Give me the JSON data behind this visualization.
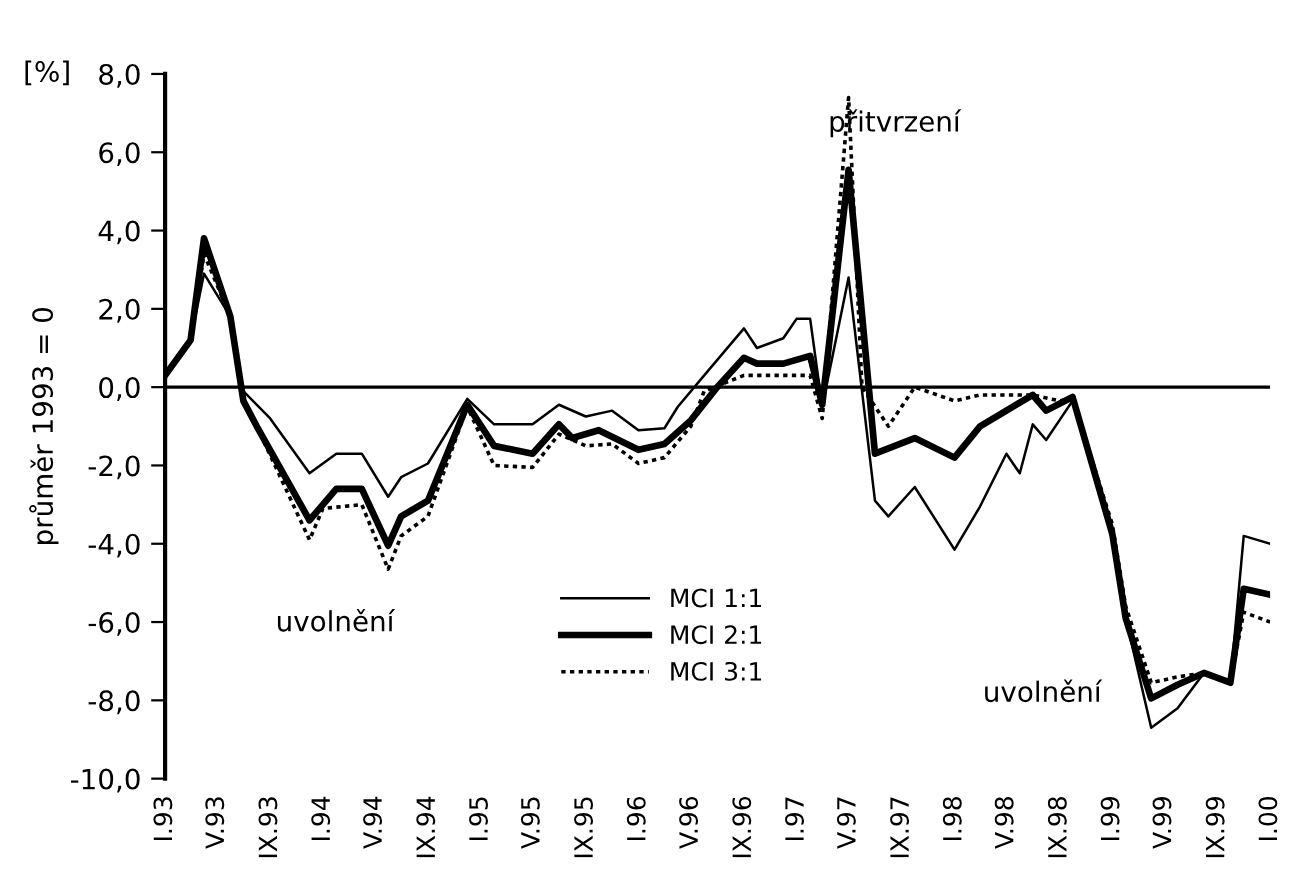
{
  "chart_data": {
    "type": "line",
    "ylabel": "průměr 1993 = 0",
    "annotations": [
      "[%]",
      "přitvrzení",
      "uvolnění",
      "uvolnění"
    ],
    "xlim": [
      "1993-01",
      "2000-01"
    ],
    "xticks": [
      {
        "value": "1993-01",
        "label": "I.93"
      },
      {
        "value": "1993-05",
        "label": "V.93"
      },
      {
        "value": "1993-09",
        "label": "IX.93"
      },
      {
        "value": "1994-01",
        "label": "I.94"
      },
      {
        "value": "1994-05",
        "label": "V.94"
      },
      {
        "value": "1994-09",
        "label": "IX.94"
      },
      {
        "value": "1995-01",
        "label": "I.95"
      },
      {
        "value": "1995-05",
        "label": "V.95"
      },
      {
        "value": "1995-09",
        "label": "IX.95"
      },
      {
        "value": "1996-01",
        "label": "I.96"
      },
      {
        "value": "1996-05",
        "label": "V.96"
      },
      {
        "value": "1996-09",
        "label": "IX.96"
      },
      {
        "value": "1997-01",
        "label": "I.97"
      },
      {
        "value": "1997-05",
        "label": "V.97"
      },
      {
        "value": "1997-09",
        "label": "IX.97"
      },
      {
        "value": "1998-01",
        "label": "I.98"
      },
      {
        "value": "1998-05",
        "label": "V.98"
      },
      {
        "value": "1998-09",
        "label": "IX.98"
      },
      {
        "value": "1999-01",
        "label": "I.99"
      },
      {
        "value": "1999-05",
        "label": "V.99"
      },
      {
        "value": "1999-09",
        "label": "IX.99"
      },
      {
        "value": "2000-01",
        "label": "I.00"
      }
    ],
    "ylim": [
      -10,
      8
    ],
    "yticks": [
      {
        "value": -10,
        "label": "-10,0"
      },
      {
        "value": -8,
        "label": "-8,0"
      },
      {
        "value": -6,
        "label": "-6,0"
      },
      {
        "value": -4,
        "label": "-4,0"
      },
      {
        "value": -2,
        "label": "-2,0"
      },
      {
        "value": 0,
        "label": "0,0"
      },
      {
        "value": 2,
        "label": "2,0"
      },
      {
        "value": 4,
        "label": "4,0"
      },
      {
        "value": 6,
        "label": "6,0"
      },
      {
        "value": 8,
        "label": "8,0"
      }
    ],
    "ref_lines": [
      {
        "axis": "y",
        "value": 0,
        "color": "#000000",
        "line_style": "solid"
      }
    ],
    "grid": false,
    "legend": "bottom",
    "series": [
      {
        "name": "MCI 1:1",
        "color": "#000000",
        "line_style": "solid",
        "x": [
          "1993-01",
          "1993-03",
          "1993-04",
          "1993-06",
          "1993-07",
          "1993-09",
          "1993-12",
          "1994-02",
          "1994-04",
          "1994-06",
          "1994-07",
          "1994-09",
          "1994-12",
          "1995-02",
          "1995-05",
          "1995-07",
          "1995-09",
          "1995-11",
          "1996-01",
          "1996-03",
          "1996-04",
          "1996-06",
          "1996-09",
          "1996-10",
          "1996-12",
          "1997-01",
          "1997-02",
          "1997-03",
          "1997-05",
          "1997-07",
          "1997-08",
          "1997-10",
          "1998-01",
          "1998-03",
          "1998-05",
          "1998-06",
          "1998-07",
          "1998-08",
          "1998-10",
          "1999-01",
          "1999-02",
          "1999-04",
          "1999-06",
          "1999-08",
          "1999-10",
          "1999-11",
          "2000-01"
        ],
        "values": [
          0.3,
          1.2,
          2.9,
          1.8,
          -0.1,
          -0.8,
          -2.2,
          -1.7,
          -1.7,
          -2.8,
          -2.3,
          -1.95,
          -0.3,
          -0.95,
          -0.95,
          -0.45,
          -0.75,
          -0.6,
          -1.1,
          -1.05,
          -0.5,
          0.3,
          1.5,
          1.0,
          1.25,
          1.75,
          1.75,
          -0.5,
          2.8,
          -2.9,
          -3.3,
          -2.55,
          -4.15,
          -3.05,
          -1.7,
          -2.2,
          -0.95,
          -1.35,
          -0.35,
          -3.75,
          -5.9,
          -8.7,
          -8.2,
          -7.3,
          -7.55,
          -3.8,
          -4.0
        ]
      },
      {
        "name": "MCI 2:1",
        "color": "#000000",
        "line_style": "solid",
        "x": [
          "1993-01",
          "1993-03",
          "1993-04",
          "1993-06",
          "1993-07",
          "1993-08",
          "1993-12",
          "1994-02",
          "1994-04",
          "1994-06",
          "1994-07",
          "1994-09",
          "1994-12",
          "1995-02",
          "1995-05",
          "1995-07",
          "1995-08",
          "1995-10",
          "1996-01",
          "1996-03",
          "1996-05",
          "1996-07",
          "1996-09",
          "1996-10",
          "1996-12",
          "1997-02",
          "1997-03",
          "1997-05",
          "1997-07",
          "1997-10",
          "1998-01",
          "1998-03",
          "1998-05",
          "1998-07",
          "1998-08",
          "1998-10",
          "1999-01",
          "1999-02",
          "1999-04",
          "1999-06",
          "1999-08",
          "1999-10",
          "1999-11",
          "2000-01"
        ],
        "values": [
          0.3,
          1.2,
          3.8,
          1.8,
          -0.35,
          -1.0,
          -3.4,
          -2.6,
          -2.6,
          -4.05,
          -3.3,
          -2.9,
          -0.45,
          -1.5,
          -1.7,
          -0.95,
          -1.3,
          -1.1,
          -1.6,
          -1.45,
          -0.85,
          0.0,
          0.75,
          0.6,
          0.6,
          0.8,
          -0.45,
          5.55,
          -1.7,
          -1.3,
          -1.8,
          -1.0,
          -0.6,
          -0.2,
          -0.6,
          -0.25,
          -3.75,
          -5.9,
          -7.95,
          -7.6,
          -7.3,
          -7.55,
          -5.15,
          -5.3
        ]
      },
      {
        "name": "MCI 3:1",
        "color": "#000000",
        "line_style": "dotted",
        "x": [
          "1993-01",
          "1993-03",
          "1993-04",
          "1993-06",
          "1993-07",
          "1993-08",
          "1993-12",
          "1994-01",
          "1994-04",
          "1994-06",
          "1994-07",
          "1994-09",
          "1994-12",
          "1995-02",
          "1995-05",
          "1995-07",
          "1995-09",
          "1995-11",
          "1996-01",
          "1996-03",
          "1996-05",
          "1996-06",
          "1996-09",
          "1996-12",
          "1997-02",
          "1997-03",
          "1997-05",
          "1997-06",
          "1997-08",
          "1997-10",
          "1998-01",
          "1998-03",
          "1998-06",
          "1998-07",
          "1998-09",
          "1998-10",
          "1999-01",
          "1999-02",
          "1999-04",
          "1999-06",
          "1999-08",
          "1999-10",
          "1999-11",
          "2000-01"
        ],
        "values": [
          0.3,
          1.2,
          3.4,
          1.8,
          -0.35,
          -1.0,
          -3.9,
          -3.1,
          -3.0,
          -4.65,
          -3.8,
          -3.3,
          -0.5,
          -2.0,
          -2.05,
          -1.2,
          -1.5,
          -1.45,
          -1.95,
          -1.8,
          -1.0,
          -0.1,
          0.3,
          0.3,
          0.3,
          -0.8,
          7.4,
          0.0,
          -1.0,
          0.0,
          -0.35,
          -0.2,
          -0.2,
          -0.2,
          -0.35,
          -0.3,
          -3.5,
          -5.6,
          -7.55,
          -7.4,
          -7.3,
          -7.55,
          -5.75,
          -6.0
        ]
      }
    ]
  }
}
